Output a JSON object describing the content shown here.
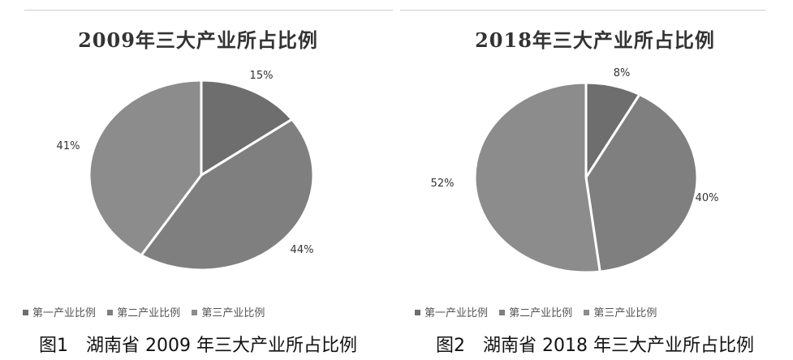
{
  "chart_data": [
    {
      "type": "pie",
      "title": "2009年三大产业所占比例",
      "caption": "图1　湖南省 2009 年三大产业所占比例",
      "categories": [
        "第一产业比例",
        "第二产业比例",
        "第三产业比例"
      ],
      "values": [
        15,
        44,
        41
      ],
      "labels": [
        "15%",
        "44%",
        "41%"
      ],
      "legend_position": "bottom",
      "colors": [
        "#6e6e6e",
        "#7f7f7f",
        "#8c8c8c"
      ]
    },
    {
      "type": "pie",
      "title": "2018年三大产业所占比例",
      "caption": "图2　湖南省 2018 年三大产业所占比例",
      "categories": [
        "第一产业比例",
        "第二产业比例",
        "第三产业比例"
      ],
      "values": [
        8,
        40,
        52
      ],
      "labels": [
        "8%",
        "40%",
        "52%"
      ],
      "legend_position": "bottom",
      "colors": [
        "#6e6e6e",
        "#7f7f7f",
        "#8c8c8c"
      ]
    }
  ]
}
